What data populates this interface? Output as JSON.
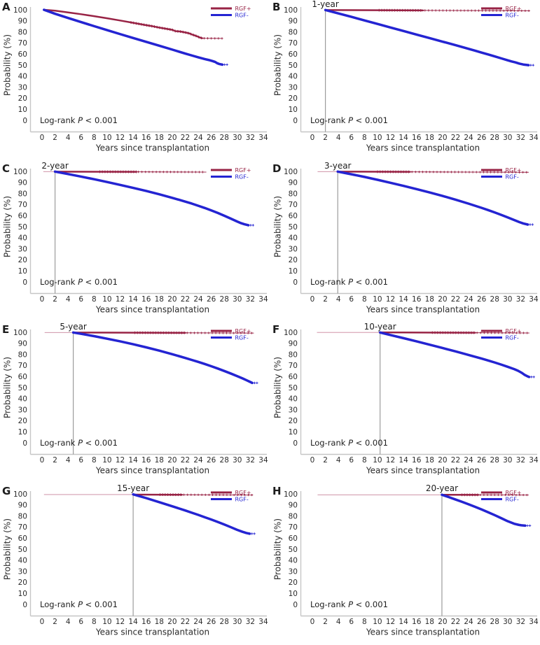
{
  "figure": {
    "legend": {
      "items": [
        {
          "label": "RGF+",
          "color": "#982345"
        },
        {
          "label": "RGF-",
          "color": "#2424d2"
        }
      ]
    },
    "logrank": {
      "prefix": "Log-rank ",
      "stat": "P",
      "suffix": " < 0.001"
    },
    "colors": {
      "maroon": "#982345",
      "blue": "#2424d2",
      "pink": "#c9849b",
      "landmark_line": "#9c9c9c",
      "axis": "#c6c6c6",
      "text": "#2b2b2b"
    }
  },
  "chart_data": {
    "type": "line",
    "description": "Eight Kaplan-Meier landmark survival panels comparing RGF+ vs RGF- groups",
    "xlabel": "Years since transplantation",
    "ylabel": "Probability (%)",
    "x_ticks": [
      0,
      2,
      4,
      6,
      8,
      10,
      12,
      14,
      16,
      18,
      20,
      22,
      24,
      26,
      28,
      30,
      32,
      34
    ],
    "y_ticks": [
      100,
      90,
      80,
      70,
      60,
      50,
      40,
      30,
      20,
      10,
      0
    ],
    "xlim": [
      0,
      34
    ],
    "ylim": [
      0,
      100
    ],
    "legend_position": "top-right",
    "panels": [
      {
        "letter": "A",
        "title": null,
        "landmark_x": null,
        "pre_line_start": null,
        "logrank": "Log-rank P < 0.001",
        "red": {
          "name": "RGF+",
          "thick_end": 24.6,
          "trail_end": 27.7,
          "points": [
            [
              0.3,
              100
            ],
            [
              2,
              99.2
            ],
            [
              4,
              97.6
            ],
            [
              6,
              96
            ],
            [
              8,
              94.2
            ],
            [
              10,
              92.3
            ],
            [
              12,
              90.3
            ],
            [
              14,
              88.2
            ],
            [
              16,
              86.1
            ],
            [
              17,
              85.1
            ],
            [
              18,
              83.9
            ],
            [
              19,
              82.9
            ],
            [
              20,
              81.9
            ],
            [
              20.5,
              80.7
            ],
            [
              21.3,
              80.3
            ],
            [
              22,
              79.5
            ],
            [
              22.6,
              78.7
            ],
            [
              23.2,
              77.3
            ],
            [
              23.8,
              76.1
            ],
            [
              24.2,
              75
            ],
            [
              24.6,
              74.3
            ],
            [
              25.2,
              74.2
            ],
            [
              27.7,
              74.1
            ]
          ]
        },
        "blue": {
          "name": "RGF-",
          "points": [
            [
              0.3,
              100
            ],
            [
              2,
              96.4
            ],
            [
              4,
              92.6
            ],
            [
              6,
              88.9
            ],
            [
              8,
              85.2
            ],
            [
              10,
              81.6
            ],
            [
              12,
              78
            ],
            [
              14,
              74.5
            ],
            [
              16,
              71
            ],
            [
              18,
              67.5
            ],
            [
              20,
              64
            ],
            [
              22,
              60.4
            ],
            [
              23,
              58.7
            ],
            [
              24,
              57
            ],
            [
              25,
              55.4
            ],
            [
              25.6,
              54.6
            ],
            [
              26.2,
              53.6
            ],
            [
              26.6,
              52.8
            ],
            [
              26.9,
              51.7
            ],
            [
              27.2,
              51
            ],
            [
              27.7,
              50.4
            ]
          ]
        }
      },
      {
        "letter": "B",
        "title": "1-year",
        "landmark_x": 2.0,
        "pre_line_start": null,
        "logrank": "Log-rank P < 0.001",
        "red": {
          "name": "RGF+",
          "thick_end": 17,
          "trail_end": 33.4,
          "points": [
            [
              2,
              99.8
            ],
            [
              33.4,
              99.1
            ]
          ]
        },
        "blue": {
          "name": "RGF-",
          "points": [
            [
              2,
              99.8
            ],
            [
              4,
              96.7
            ],
            [
              6,
              93.6
            ],
            [
              8,
              90.4
            ],
            [
              10,
              87.2
            ],
            [
              12,
              84
            ],
            [
              14,
              80.8
            ],
            [
              16,
              77.6
            ],
            [
              18,
              74.4
            ],
            [
              20,
              71.2
            ],
            [
              22,
              68
            ],
            [
              24,
              64.7
            ],
            [
              25,
              63
            ],
            [
              26,
              61.3
            ],
            [
              27,
              59.6
            ],
            [
              28,
              57.9
            ],
            [
              29,
              56.1
            ],
            [
              30,
              54.3
            ],
            [
              30.6,
              53.3
            ],
            [
              31.2,
              52.4
            ],
            [
              31.8,
              51.3
            ],
            [
              32.4,
              50.5
            ],
            [
              33.2,
              49.9
            ]
          ]
        }
      },
      {
        "letter": "C",
        "title": "2-year",
        "landmark_x": 2.0,
        "pre_line_start": 0.2,
        "logrank": "Log-rank P < 0.001",
        "red": {
          "name": "RGF+",
          "thick_end": 14.5,
          "trail_end": 25.2,
          "points": [
            [
              2,
              99.8
            ],
            [
              25.2,
              99.4
            ]
          ]
        },
        "blue": {
          "name": "RGF-",
          "points": [
            [
              2,
              99.8
            ],
            [
              4,
              97.6
            ],
            [
              6,
              95.3
            ],
            [
              8,
              92.9
            ],
            [
              10,
              90.4
            ],
            [
              12,
              87.8
            ],
            [
              14,
              85.1
            ],
            [
              16,
              82.3
            ],
            [
              18,
              79.3
            ],
            [
              20,
              76.1
            ],
            [
              22,
              72.7
            ],
            [
              23,
              70.9
            ],
            [
              24,
              68.9
            ],
            [
              25,
              66.9
            ],
            [
              26,
              64.7
            ],
            [
              27,
              62.4
            ],
            [
              28,
              59.9
            ],
            [
              29,
              57.3
            ],
            [
              30,
              54.6
            ],
            [
              30.6,
              53.1
            ],
            [
              31.1,
              52.2
            ],
            [
              31.7,
              51.3
            ]
          ]
        }
      },
      {
        "letter": "D",
        "title": "3-year",
        "landmark_x": 3.9,
        "pre_line_start": 0.8,
        "logrank": "Log-rank P < 0.001",
        "red": {
          "name": "RGF+",
          "thick_end": 15,
          "trail_end": 33.2,
          "points": [
            [
              3.9,
              99.8
            ],
            [
              33.2,
              99.2
            ]
          ]
        },
        "blue": {
          "name": "RGF-",
          "points": [
            [
              3.9,
              99.8
            ],
            [
              6,
              97.4
            ],
            [
              8,
              95
            ],
            [
              10,
              92.4
            ],
            [
              12,
              89.7
            ],
            [
              14,
              86.9
            ],
            [
              16,
              84
            ],
            [
              18,
              81
            ],
            [
              20,
              77.8
            ],
            [
              22,
              74.4
            ],
            [
              24,
              70.8
            ],
            [
              25,
              68.9
            ],
            [
              26,
              67
            ],
            [
              27,
              65
            ],
            [
              28,
              62.9
            ],
            [
              29,
              60.7
            ],
            [
              30,
              58.4
            ],
            [
              31,
              56
            ],
            [
              31.8,
              54.1
            ],
            [
              32.4,
              52.9
            ],
            [
              33.1,
              51.9
            ]
          ]
        }
      },
      {
        "letter": "E",
        "title": "5-year",
        "landmark_x": 4.8,
        "pre_line_start": 0.4,
        "logrank": "Log-rank P < 0.001",
        "red": {
          "name": "RGF+",
          "thick_end": 22,
          "trail_end": 32.5,
          "points": [
            [
              4.8,
              99.8
            ],
            [
              32.5,
              99.3
            ]
          ]
        },
        "blue": {
          "name": "RGF-",
          "points": [
            [
              4.8,
              99.8
            ],
            [
              6,
              98.6
            ],
            [
              8,
              96.5
            ],
            [
              10,
              94.2
            ],
            [
              12,
              91.8
            ],
            [
              14,
              89.2
            ],
            [
              16,
              86.4
            ],
            [
              18,
              83.4
            ],
            [
              20,
              80.2
            ],
            [
              22,
              76.8
            ],
            [
              23,
              75
            ],
            [
              24,
              73.2
            ],
            [
              25,
              71.3
            ],
            [
              26,
              69.3
            ],
            [
              27,
              67.2
            ],
            [
              28,
              65
            ],
            [
              29,
              62.7
            ],
            [
              30,
              60.3
            ],
            [
              30.8,
              58.3
            ],
            [
              31.4,
              56.7
            ],
            [
              31.9,
              55.3
            ],
            [
              32.3,
              54.2
            ]
          ]
        }
      },
      {
        "letter": "F",
        "title": "10-year",
        "landmark_x": 10.4,
        "pre_line_start": 0.7,
        "logrank": "Log-rank P < 0.001",
        "red": {
          "name": "RGF+",
          "thick_end": 25,
          "trail_end": 33.3,
          "points": [
            [
              10.4,
              99.9
            ],
            [
              33.3,
              99.4
            ]
          ]
        },
        "blue": {
          "name": "RGF-",
          "points": [
            [
              10.4,
              99.8
            ],
            [
              12,
              97.5
            ],
            [
              14,
              94.7
            ],
            [
              16,
              91.8
            ],
            [
              18,
              88.8
            ],
            [
              20,
              85.8
            ],
            [
              22,
              82.7
            ],
            [
              24,
              79.5
            ],
            [
              26,
              76.2
            ],
            [
              27,
              74.5
            ],
            [
              28,
              72.7
            ],
            [
              29,
              70.8
            ],
            [
              30,
              68.8
            ],
            [
              31,
              66.7
            ],
            [
              31.6,
              65.2
            ],
            [
              32.2,
              63.2
            ],
            [
              32.6,
              61.5
            ],
            [
              33,
              60.3
            ],
            [
              33.3,
              59.6
            ]
          ]
        }
      },
      {
        "letter": "G",
        "title": "15-year",
        "landmark_x": 14.0,
        "pre_line_start": 0.3,
        "logrank": "Log-rank P < 0.001",
        "red": {
          "name": "RGF+",
          "thick_end": 21.5,
          "trail_end": 32.3,
          "points": [
            [
              14,
              99.4
            ],
            [
              32.3,
              99.0
            ]
          ]
        },
        "blue": {
          "name": "RGF-",
          "points": [
            [
              14,
              99.6
            ],
            [
              16,
              96.2
            ],
            [
              18,
              92.5
            ],
            [
              20,
              88.8
            ],
            [
              22,
              85
            ],
            [
              23,
              83
            ],
            [
              24,
              81
            ],
            [
              25,
              78.9
            ],
            [
              26,
              76.8
            ],
            [
              27,
              74.6
            ],
            [
              28,
              72.3
            ],
            [
              29,
              69.9
            ],
            [
              30,
              67.4
            ],
            [
              30.8,
              65.7
            ],
            [
              31.4,
              64.6
            ],
            [
              31.9,
              64
            ]
          ]
        }
      },
      {
        "letter": "H",
        "title": "20-year",
        "landmark_x": 19.9,
        "pre_line_start": 0.8,
        "logrank": "Log-rank P < 0.001",
        "red": {
          "name": "RGF+",
          "thick_end": 25.5,
          "trail_end": 33.2,
          "points": [
            [
              19.9,
              99.2
            ],
            [
              33.2,
              99.0
            ]
          ]
        },
        "blue": {
          "name": "RGF-",
          "points": [
            [
              19.9,
              99.2
            ],
            [
              21,
              97
            ],
            [
              22,
              94.9
            ],
            [
              23,
              92.8
            ],
            [
              24,
              90.6
            ],
            [
              25,
              88.3
            ],
            [
              26,
              85.9
            ],
            [
              27,
              83.4
            ],
            [
              28,
              80.8
            ],
            [
              29,
              78.1
            ],
            [
              30,
              75.3
            ],
            [
              31,
              73
            ],
            [
              31.7,
              72
            ],
            [
              32.1,
              71.6
            ],
            [
              32.7,
              71.3
            ]
          ]
        }
      }
    ]
  }
}
